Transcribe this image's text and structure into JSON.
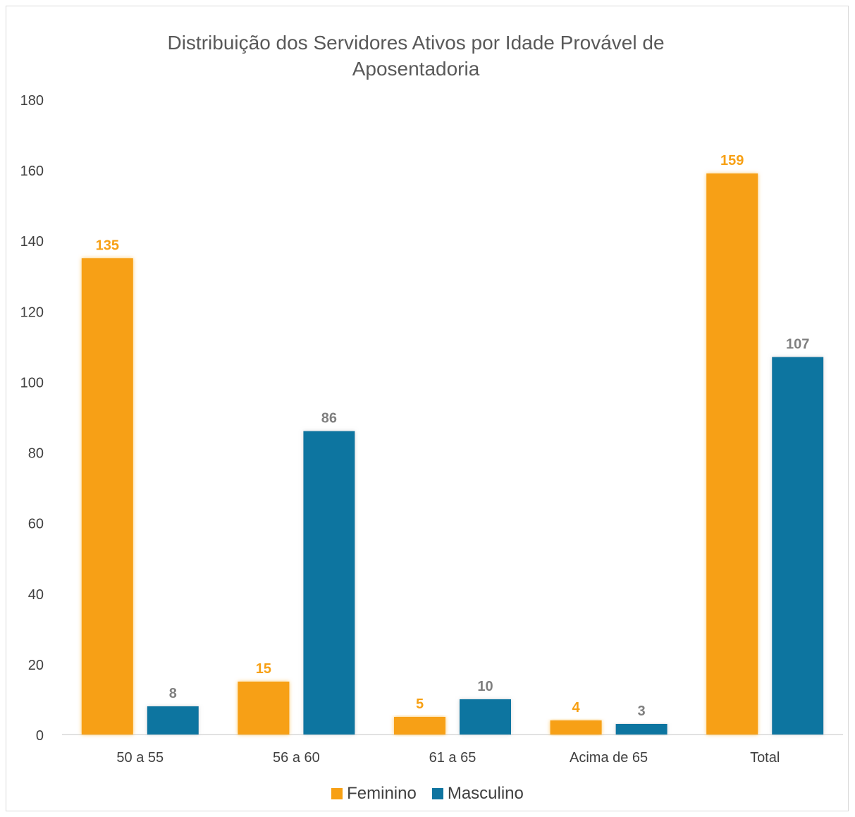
{
  "chart_data": {
    "type": "bar",
    "title": "Distribuição dos Servidores Ativos por Idade Provável de Aposentadoria",
    "xlabel": "",
    "ylabel": "",
    "categories": [
      "50 a 55",
      "56 a 60",
      "61 a 65",
      "Acima de 65",
      "Total"
    ],
    "series": [
      {
        "name": "Feminino",
        "values": [
          135,
          15,
          5,
          4,
          159
        ],
        "color": "#F7A014",
        "label_color": "#F7A014"
      },
      {
        "name": "Masculino",
        "values": [
          8,
          86,
          10,
          3,
          107
        ],
        "color": "#0E74A0",
        "label_color": "#7F7F7F"
      }
    ],
    "ylim": [
      0,
      180
    ],
    "yticks": [
      0,
      20,
      40,
      60,
      80,
      100,
      120,
      140,
      160,
      180
    ],
    "grid": false,
    "legend_position": "bottom"
  }
}
